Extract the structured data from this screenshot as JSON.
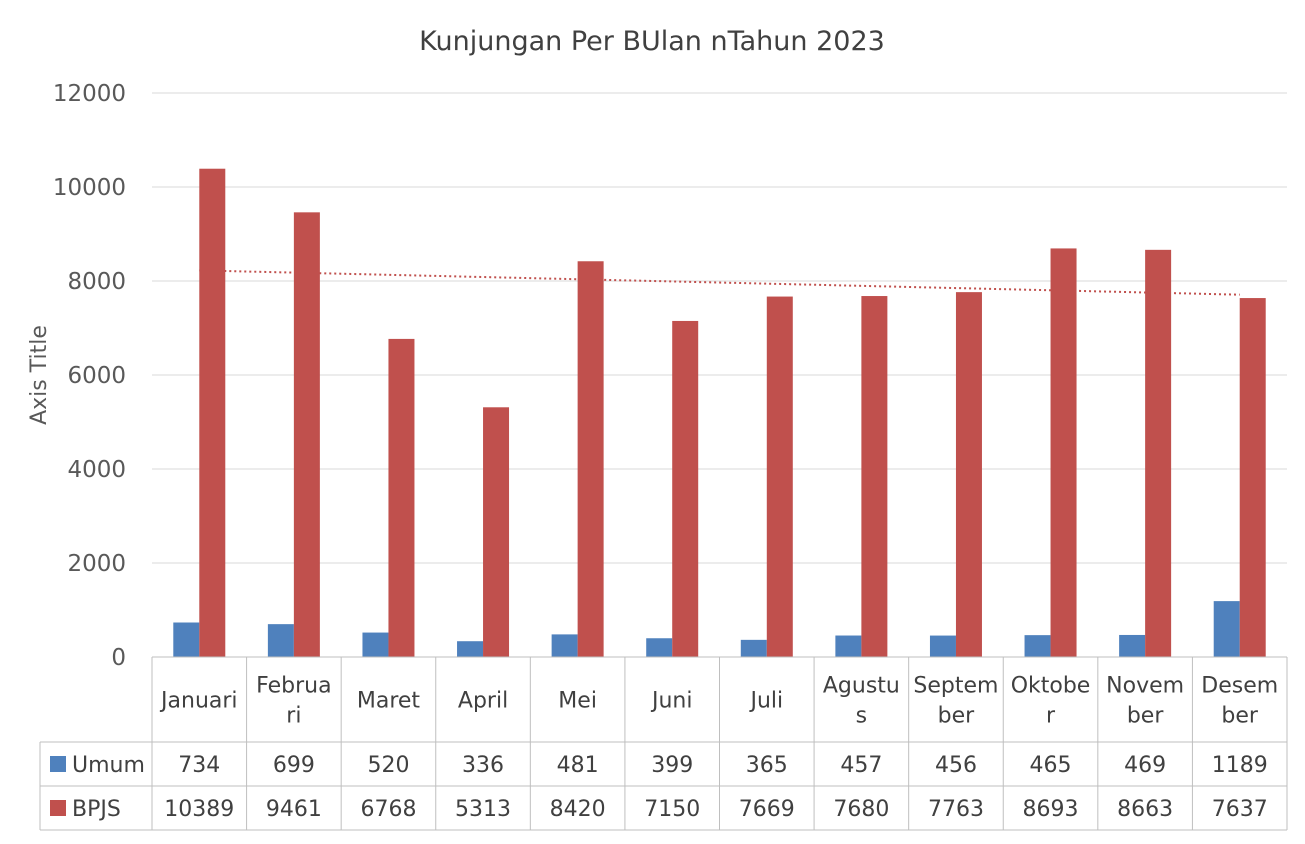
{
  "chart_data": {
    "type": "bar",
    "title": "Kunjungan Per BUlan nTahun 2023",
    "ylabel": "Axis Title",
    "xlabel": "",
    "ylim": [
      0,
      12000
    ],
    "yticks": [
      0,
      2000,
      4000,
      6000,
      8000,
      10000,
      12000
    ],
    "grid": true,
    "legend": "data-table",
    "categories": [
      [
        "Januari"
      ],
      [
        "Februa",
        "ri"
      ],
      [
        "Maret"
      ],
      [
        "April"
      ],
      [
        "Mei"
      ],
      [
        "Juni"
      ],
      [
        "Juli"
      ],
      [
        "Agustu",
        "s"
      ],
      [
        "Septem",
        "ber"
      ],
      [
        "Oktobe",
        "r"
      ],
      [
        "Novem",
        "ber"
      ],
      [
        "Desem",
        "ber"
      ]
    ],
    "series": [
      {
        "name": "Umum",
        "color": "#4f81bd",
        "values": [
          734,
          699,
          520,
          336,
          481,
          399,
          365,
          457,
          456,
          465,
          469,
          1189
        ]
      },
      {
        "name": "BPJS",
        "color": "#c0504d",
        "values": [
          10389,
          9461,
          6768,
          5313,
          8420,
          7150,
          7669,
          7680,
          7763,
          8693,
          8663,
          7637
        ]
      }
    ],
    "trendline": {
      "series": "BPJS",
      "type": "linear",
      "style": "dotted",
      "color": "#c0504d"
    }
  }
}
